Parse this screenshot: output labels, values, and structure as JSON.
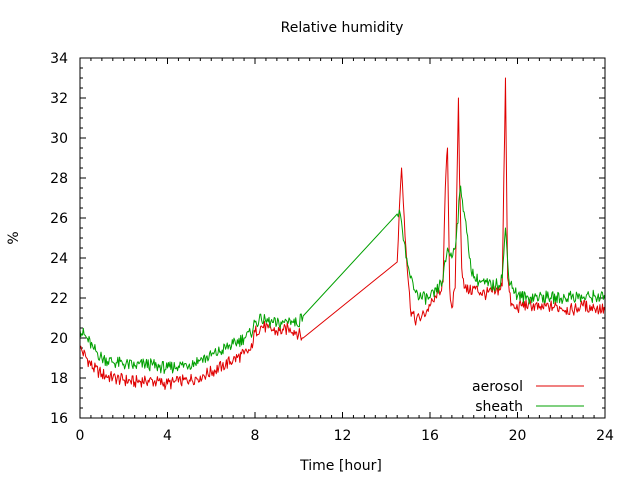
{
  "chart_data": {
    "type": "line",
    "title": "Relative humidity",
    "xlabel": "Time [hour]",
    "ylabel": "%",
    "xlim": [
      0,
      24
    ],
    "ylim": [
      16,
      34
    ],
    "x_ticks": [
      0,
      4,
      8,
      12,
      16,
      20,
      24
    ],
    "y_ticks": [
      16,
      18,
      20,
      22,
      24,
      26,
      28,
      30,
      32,
      34
    ],
    "x_minor_step": 0.5,
    "y_minor_step": 0.5,
    "grid": false,
    "legend_position": "bottom-right",
    "series": [
      {
        "name": "aerosol",
        "color": "#e00000",
        "x": [
          0,
          0.3,
          0.6,
          1.0,
          1.5,
          2.0,
          2.5,
          3.0,
          3.5,
          4.0,
          4.5,
          5.0,
          5.5,
          6.0,
          6.5,
          7.0,
          7.5,
          7.8,
          8.0,
          8.3,
          8.6,
          9.0,
          9.3,
          9.6,
          9.9,
          10.2,
          14.5,
          14.6,
          14.7,
          14.9,
          15.1,
          15.3,
          15.6,
          16.0,
          16.3,
          16.6,
          16.7,
          16.8,
          16.9,
          17.0,
          17.15,
          17.3,
          17.35,
          17.45,
          17.6,
          17.8,
          18.0,
          18.5,
          19.0,
          19.3,
          19.45,
          19.55,
          19.7,
          19.9,
          20.2,
          20.5,
          21.0,
          21.5,
          22.0,
          22.5,
          23.0,
          23.5,
          24.0
        ],
        "y": [
          19.5,
          19.0,
          18.5,
          18.2,
          18.0,
          17.9,
          17.8,
          17.9,
          17.8,
          17.7,
          17.8,
          17.9,
          18.1,
          18.3,
          18.6,
          18.9,
          19.2,
          19.4,
          20.3,
          20.6,
          20.5,
          20.3,
          20.4,
          20.5,
          20.3,
          20.0,
          23.8,
          26.5,
          28.5,
          24.5,
          21.5,
          20.9,
          21.0,
          21.6,
          22.0,
          22.8,
          27.5,
          29.5,
          22.5,
          21.5,
          22.5,
          32.0,
          28.0,
          23.5,
          22.5,
          22.3,
          22.5,
          22.2,
          22.3,
          22.6,
          33.0,
          23.0,
          21.6,
          21.5,
          21.6,
          21.7,
          21.5,
          21.6,
          21.5,
          21.4,
          21.6,
          21.5,
          21.4
        ]
      },
      {
        "name": "sheath",
        "color": "#00a000",
        "x": [
          0,
          0.3,
          0.6,
          1.0,
          1.5,
          2.0,
          2.5,
          3.0,
          3.5,
          4.0,
          4.5,
          5.0,
          5.5,
          6.0,
          6.5,
          7.0,
          7.5,
          7.8,
          8.0,
          8.3,
          8.6,
          9.0,
          9.3,
          9.6,
          9.9,
          10.2,
          14.5,
          14.6,
          14.7,
          14.9,
          15.1,
          15.3,
          15.6,
          16.0,
          16.3,
          16.6,
          16.8,
          17.0,
          17.2,
          17.4,
          17.6,
          17.8,
          18.0,
          18.5,
          19.0,
          19.3,
          19.45,
          19.6,
          19.8,
          20.0,
          20.5,
          21.0,
          21.5,
          22.0,
          22.5,
          23.0,
          23.5,
          24.0
        ],
        "y": [
          20.4,
          20.0,
          19.5,
          19.0,
          18.8,
          18.7,
          18.6,
          18.7,
          18.6,
          18.5,
          18.6,
          18.7,
          18.9,
          19.1,
          19.4,
          19.7,
          20.0,
          20.2,
          20.8,
          20.9,
          20.8,
          20.7,
          20.8,
          20.9,
          20.7,
          21.1,
          26.2,
          26.4,
          25.8,
          24.0,
          23.0,
          22.4,
          22.0,
          22.0,
          22.3,
          23.0,
          24.5,
          24.0,
          25.0,
          27.6,
          26.0,
          24.0,
          23.0,
          22.7,
          22.6,
          23.0,
          25.5,
          23.0,
          22.5,
          22.1,
          22.0,
          22.1,
          22.0,
          22.0,
          22.1,
          22.0,
          22.1,
          22.0
        ]
      }
    ]
  }
}
